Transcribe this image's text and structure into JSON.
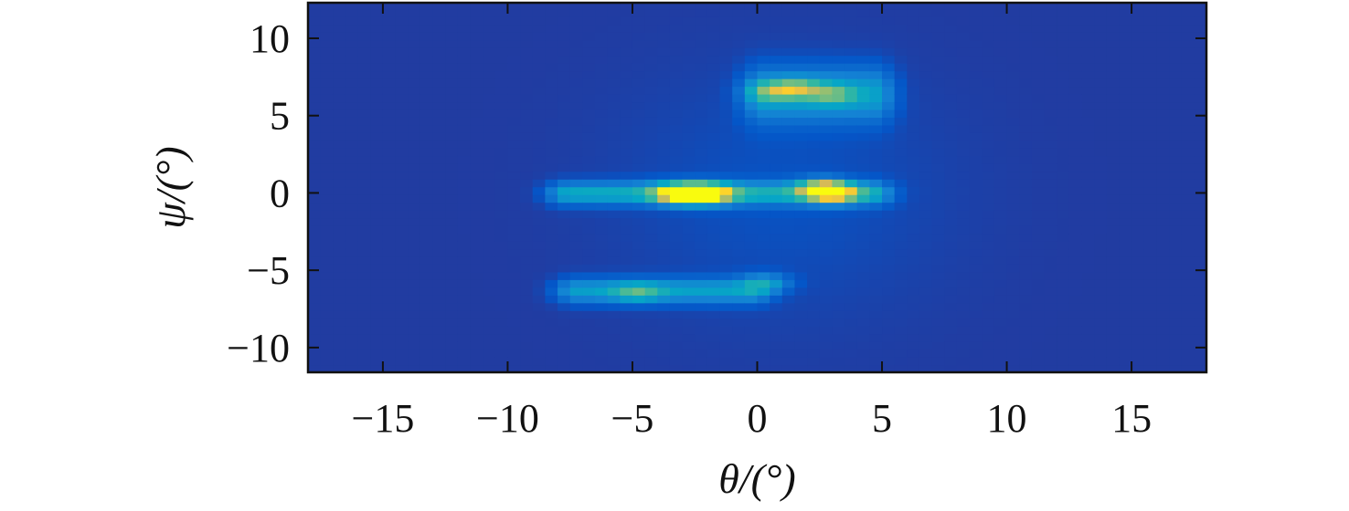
{
  "chart_data": {
    "type": "heatmap",
    "title": "",
    "xlabel": "θ/(°)",
    "ylabel": "ψ/(°)",
    "xlim": [
      -18,
      18
    ],
    "ylim": [
      -11.6,
      12.3
    ],
    "x_ticks": [
      -15,
      -10,
      -5,
      0,
      5,
      10,
      15
    ],
    "y_ticks": [
      -10,
      -5,
      0,
      5,
      10
    ],
    "x_tick_labels": [
      "−15",
      "−10",
      "−5",
      "0",
      "5",
      "10",
      "15"
    ],
    "y_tick_labels": [
      "−10",
      "−5",
      "0",
      "5",
      "10"
    ],
    "colormap": "parula",
    "colorbar": false,
    "grid": false,
    "cell_size_deg": 0.5,
    "intensity_scale": [
      0,
      1
    ],
    "background_intensity": 0.04,
    "hotspots": [
      {
        "theta": 2.6,
        "psi": 0.3,
        "intensity": 0.85
      },
      {
        "theta": 3.1,
        "psi": 0.0,
        "intensity": 0.75
      },
      {
        "theta": -2.5,
        "psi": 0.0,
        "intensity": 0.95
      },
      {
        "theta": -3.3,
        "psi": 0.0,
        "intensity": 0.8
      },
      {
        "theta": -1.8,
        "psi": 0.0,
        "intensity": 0.75
      },
      {
        "theta": 1.6,
        "psi": 6.8,
        "intensity": 0.55
      },
      {
        "theta": 0.6,
        "psi": 6.6,
        "intensity": 0.45
      },
      {
        "theta": 3.0,
        "psi": 6.4,
        "intensity": 0.45
      },
      {
        "theta": -4.8,
        "psi": -6.4,
        "intensity": 0.38
      },
      {
        "theta": 0.4,
        "psi": -5.8,
        "intensity": 0.35
      }
    ],
    "bands": [
      {
        "theta_from": -7.5,
        "theta_to": 4.5,
        "psi": 0.0,
        "psi_halfwidth": 0.5,
        "intensity": 0.38
      },
      {
        "theta_from": 0.3,
        "theta_to": 4.6,
        "psi": 6.4,
        "psi_halfwidth": 1.2,
        "intensity": 0.32
      },
      {
        "theta_from": -7.2,
        "theta_to": -0.3,
        "psi": -6.3,
        "psi_halfwidth": 0.55,
        "intensity": 0.32
      }
    ]
  }
}
